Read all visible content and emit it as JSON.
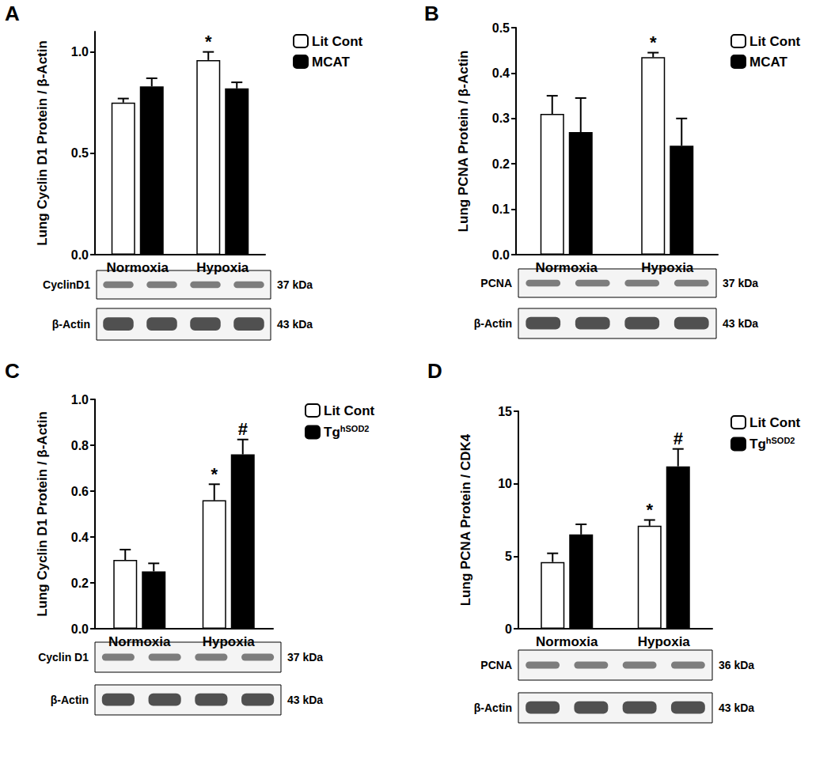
{
  "chart_data": [
    {
      "type": "bar",
      "panel": "A",
      "ylabel": "Lung Cyclin D1 Protein / β-Actin",
      "categories": [
        "Normoxia",
        "Hypoxia"
      ],
      "series": [
        {
          "name": "Lit Cont",
          "color": "#ffffff",
          "values": [
            0.75,
            0.96
          ],
          "errors": [
            0.02,
            0.04
          ],
          "annotations": [
            null,
            "*"
          ]
        },
        {
          "name": "MCAT",
          "color": "#000000",
          "values": [
            0.83,
            0.82
          ],
          "errors": [
            0.04,
            0.03
          ],
          "annotations": [
            null,
            null
          ]
        }
      ],
      "ylim": [
        0,
        1.1
      ],
      "yticks": [
        {
          "value": 0,
          "label": "0.0"
        },
        0.5,
        {
          "value": 1,
          "label": "1.0"
        }
      ],
      "grid": false,
      "legend": "right",
      "blot": [
        {
          "label": "CyclinD1",
          "kda": "37 kDa"
        },
        {
          "label": "β-Actin",
          "kda": "43 kDa"
        }
      ]
    },
    {
      "type": "bar",
      "panel": "B",
      "ylabel": "Lung PCNA Protein / β-Actin",
      "categories": [
        "Normoxia",
        "Hypoxia"
      ],
      "series": [
        {
          "name": "Lit Cont",
          "color": "#ffffff",
          "values": [
            0.31,
            0.435
          ],
          "errors": [
            0.04,
            0.01
          ],
          "annotations": [
            null,
            "*"
          ]
        },
        {
          "name": "MCAT",
          "color": "#000000",
          "values": [
            0.27,
            0.24
          ],
          "errors": [
            0.075,
            0.06
          ],
          "annotations": [
            null,
            null
          ]
        }
      ],
      "ylim": [
        0,
        0.5
      ],
      "yticks": [
        {
          "value": 0,
          "label": "0.0"
        },
        0.1,
        0.2,
        0.3,
        0.4,
        0.5
      ],
      "grid": false,
      "legend": "right",
      "blot": [
        {
          "label": "PCNA",
          "kda": "37 kDa"
        },
        {
          "label": "β-Actin",
          "kda": "43 kDa"
        }
      ]
    },
    {
      "type": "bar",
      "panel": "C",
      "ylabel": "Lung Cyclin D1 Protein / β-Actin",
      "categories": [
        "Normoxia",
        "Hypoxia"
      ],
      "series": [
        {
          "name": "Lit Cont",
          "color": "#ffffff",
          "values": [
            0.3,
            0.56
          ],
          "errors": [
            0.045,
            0.07
          ],
          "annotations": [
            null,
            "*"
          ]
        },
        {
          "name": "Tg",
          "name_sup": "hSOD2",
          "color": "#000000",
          "values": [
            0.25,
            0.76
          ],
          "errors": [
            0.035,
            0.065
          ],
          "annotations": [
            null,
            "#"
          ]
        }
      ],
      "ylim": [
        0,
        1.0
      ],
      "yticks": [
        {
          "value": 0,
          "label": "0.0"
        },
        0.2,
        0.4,
        0.6,
        0.8,
        {
          "value": 1,
          "label": "1.0"
        }
      ],
      "grid": false,
      "legend": "right",
      "blot": [
        {
          "label": "Cyclin D1",
          "kda": "37 kDa"
        },
        {
          "label": "β-Actin",
          "kda": "43 kDa"
        }
      ]
    },
    {
      "type": "bar",
      "panel": "D",
      "ylabel": "Lung PCNA Protein / CDK4",
      "categories": [
        "Normoxia",
        "Hypoxia"
      ],
      "series": [
        {
          "name": "Lit Cont",
          "color": "#ffffff",
          "values": [
            4.6,
            7.1
          ],
          "errors": [
            0.6,
            0.4
          ],
          "annotations": [
            null,
            "*"
          ]
        },
        {
          "name": "Tg",
          "name_sup": "hSOD2",
          "color": "#000000",
          "values": [
            6.5,
            11.2
          ],
          "errors": [
            0.7,
            1.2
          ],
          "annotations": [
            null,
            "#"
          ]
        }
      ],
      "ylim": [
        0,
        15
      ],
      "yticks": [
        0,
        5,
        10,
        15
      ],
      "grid": false,
      "legend": "right",
      "blot": [
        {
          "label": "PCNA",
          "kda": "36 kDa"
        },
        {
          "label": "β-Actin",
          "kda": "43 kDa"
        }
      ]
    }
  ]
}
